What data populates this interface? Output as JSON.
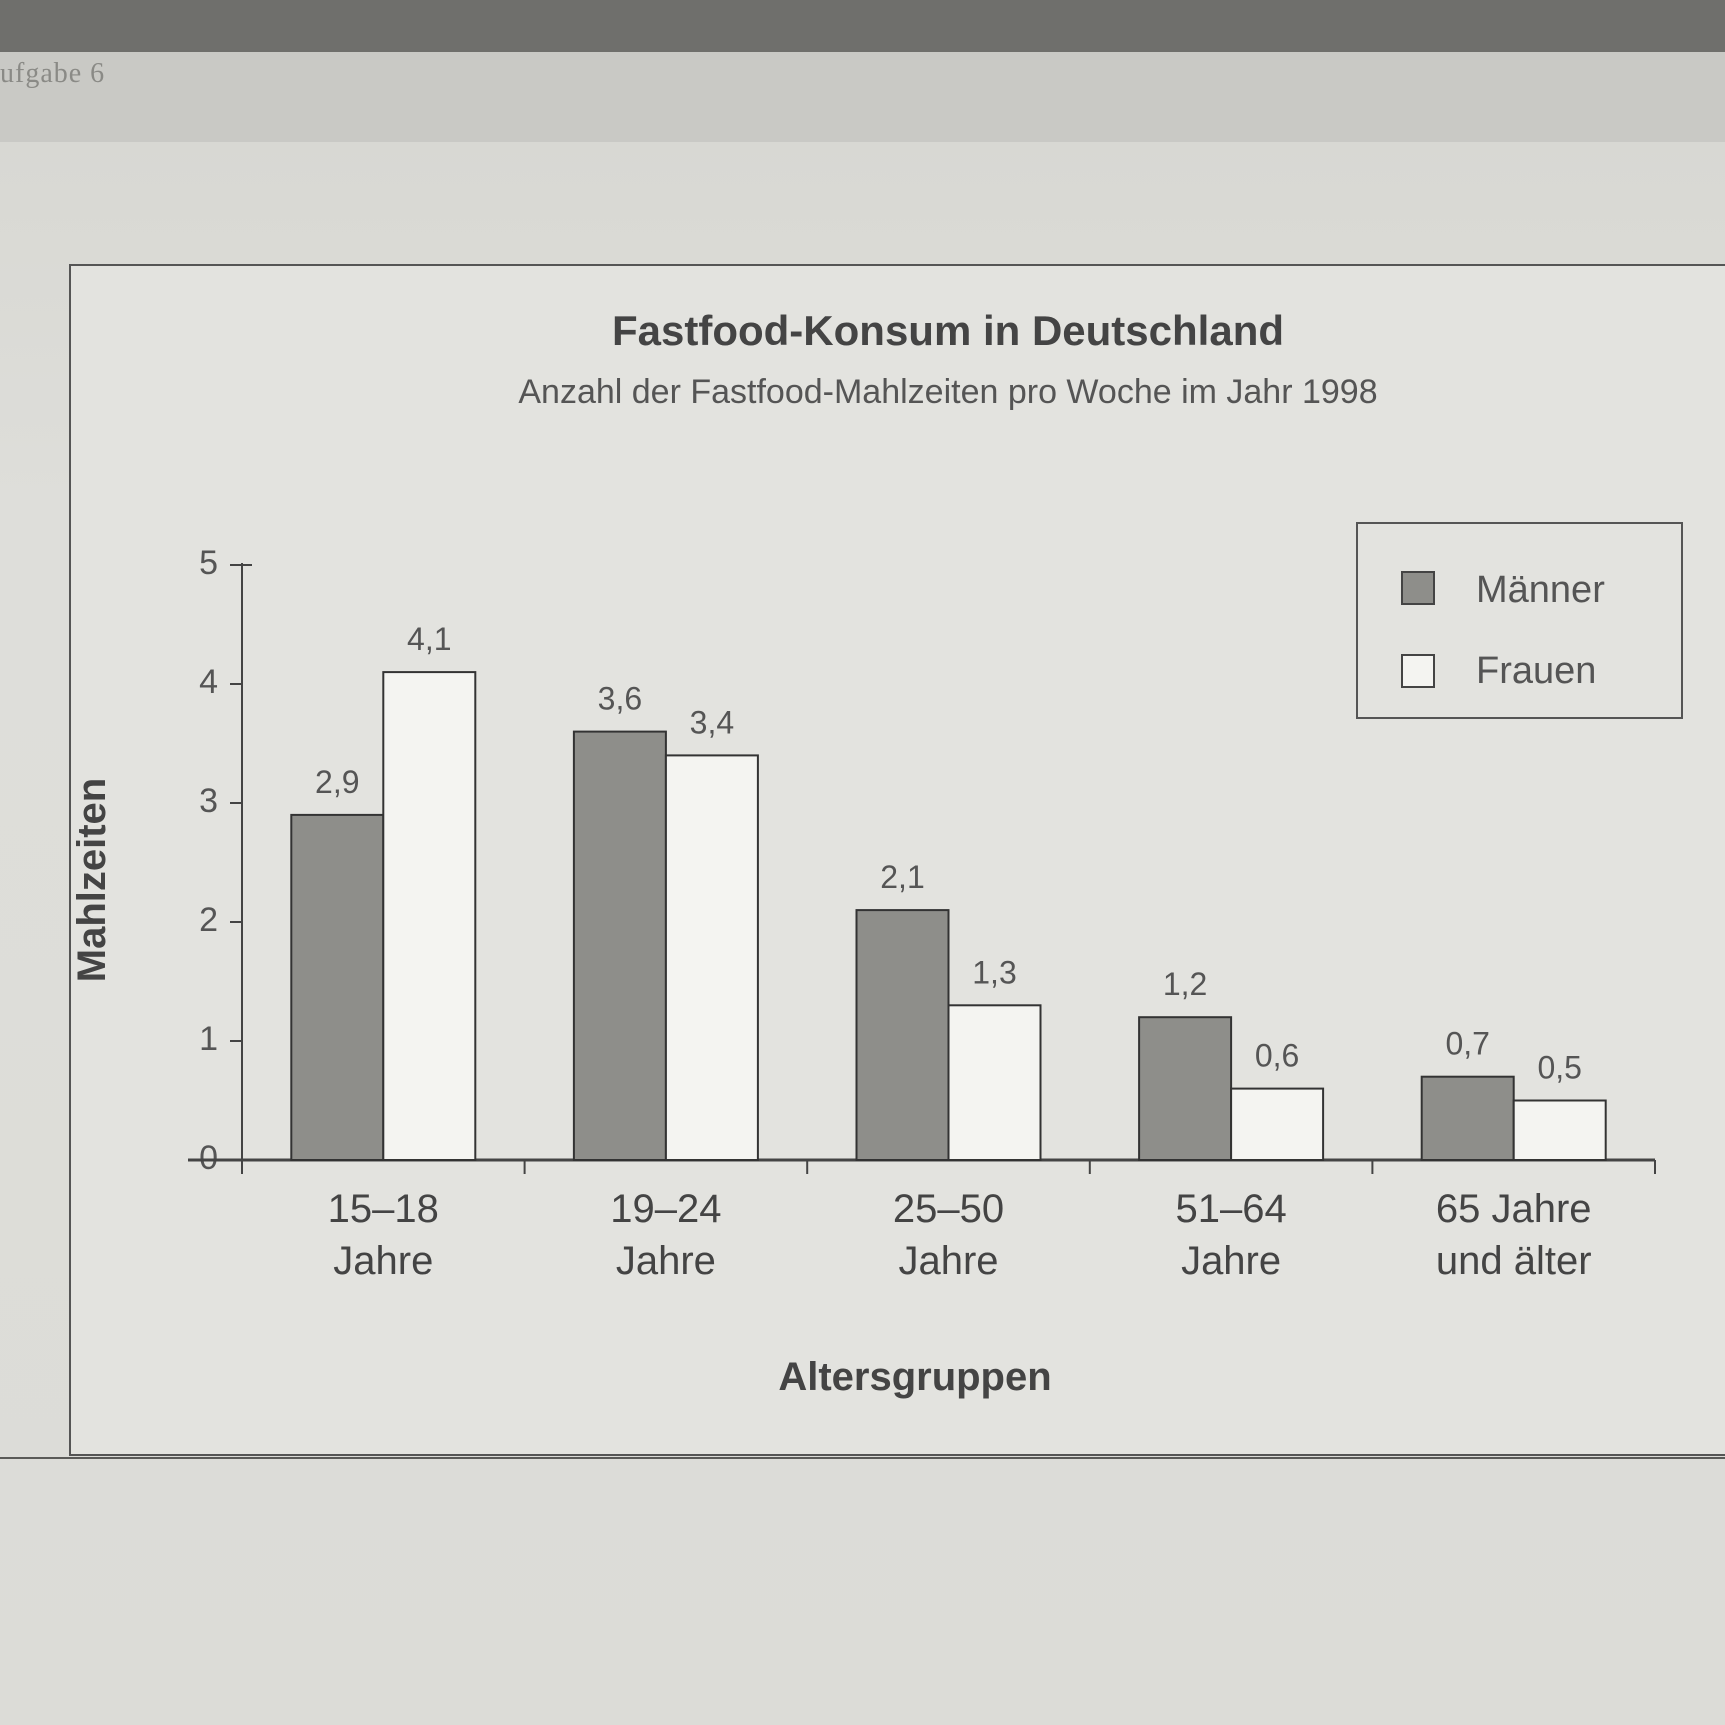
{
  "page": {
    "header_label": "ufgabe 6"
  },
  "chart_data": {
    "type": "bar",
    "title": "Fastfood-Konsum in Deutschland",
    "subtitle": "Anzahl der Fastfood-Mahlzeiten pro Woche im Jahr 1998",
    "xlabel": "Altersgruppen",
    "ylabel": "Mahlzeiten",
    "ylim": [
      0,
      5
    ],
    "yticks": [
      "0",
      "1",
      "2",
      "3",
      "4",
      "5"
    ],
    "categories": [
      [
        "15–18",
        "Jahre"
      ],
      [
        "19–24",
        "Jahre"
      ],
      [
        "25–50",
        "Jahre"
      ],
      [
        "51–64",
        "Jahre"
      ],
      [
        "65 Jahre",
        "und älter"
      ]
    ],
    "series": [
      {
        "name": "Männer",
        "values": [
          2.9,
          3.6,
          2.1,
          1.2,
          0.7
        ],
        "labels": [
          "2,9",
          "3,6",
          "2,1",
          "1,2",
          "0,7"
        ],
        "color": "#8e8e8a"
      },
      {
        "name": "Frauen",
        "values": [
          4.1,
          3.4,
          1.3,
          0.6,
          0.5
        ],
        "labels": [
          "4,1",
          "3,4",
          "1,3",
          "0,6",
          "0,5"
        ],
        "color": "#f4f4f1"
      }
    ],
    "legend_position": "top-right",
    "grid": false
  }
}
